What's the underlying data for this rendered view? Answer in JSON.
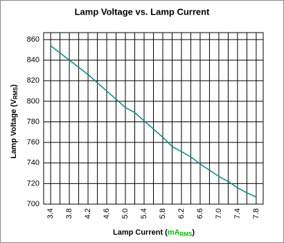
{
  "chart_data": {
    "type": "line",
    "title": "Lamp Voltage vs. Lamp Current",
    "ylabel_parts": [
      "Lamp Voltage (V",
      "RMS",
      ")"
    ],
    "xlabel_parts": [
      "Lamp Current (",
      "mA",
      "RMS",
      ")"
    ],
    "xlabel_highlight_color": "#00c000",
    "x": [
      3.4,
      3.6,
      3.8,
      4.0,
      4.2,
      4.4,
      4.6,
      4.8,
      5.0,
      5.2,
      5.4,
      5.6,
      5.8,
      6.0,
      6.2,
      6.4,
      6.6,
      6.8,
      7.0,
      7.2,
      7.4,
      7.6,
      7.8
    ],
    "series": [
      {
        "name": "Lamp Voltage",
        "color": "#008b8b",
        "values": [
          854,
          847,
          840,
          833,
          826,
          818,
          810,
          802,
          794,
          789,
          781,
          773,
          765,
          756,
          751,
          746,
          739,
          733,
          727,
          722,
          716,
          711,
          707
        ]
      }
    ],
    "xlim": [
      3.25,
      7.95
    ],
    "ylim": [
      700,
      860
    ],
    "xticks": [
      3.4,
      3.8,
      4.2,
      4.6,
      {
        "value": 5,
        "label": "5.0"
      },
      5.4,
      5.8,
      6.2,
      6.6,
      {
        "value": 7,
        "label": "7.0"
      },
      7.4,
      7.8
    ],
    "x_minor_ticks": [
      3.6,
      4.0,
      4.4,
      4.8,
      5.2,
      5.6,
      6.0,
      6.4,
      6.8,
      7.2,
      7.6
    ],
    "yticks": [
      700,
      720,
      740,
      760,
      780,
      800,
      820,
      840,
      860
    ],
    "grid": true
  }
}
